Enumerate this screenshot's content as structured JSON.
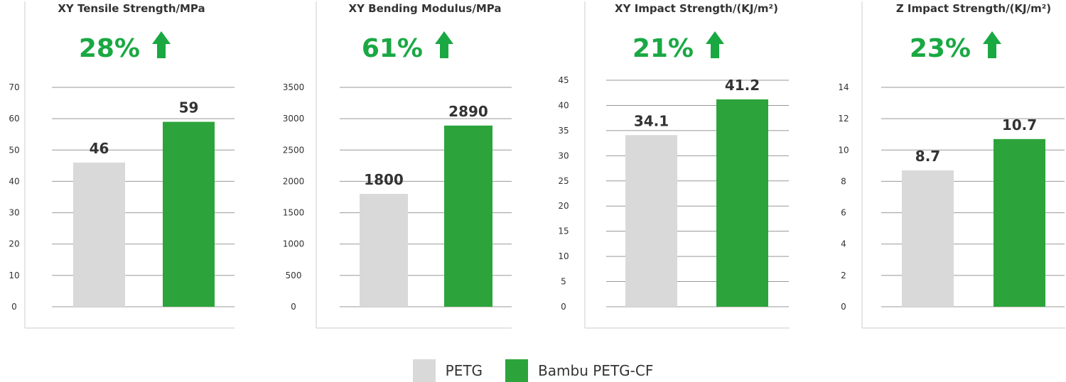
{
  "colors": {
    "petg": "#d9d9d9",
    "petg_cf": "#2ca43b",
    "highlight": "#1aa843",
    "axis_text": "#333333",
    "grid": "#999999"
  },
  "legend": {
    "items": [
      {
        "label": "PETG",
        "color": "#d9d9d9"
      },
      {
        "label": "Bambu PETG-CF",
        "color": "#2ca43b"
      }
    ]
  },
  "chart_data": [
    {
      "type": "bar",
      "title": "XY Tensile Strength/MPa",
      "improvement": "28%",
      "improvement_icon": "arrow-up-icon",
      "categories": [
        "PETG",
        "Bambu PETG-CF"
      ],
      "values": [
        46,
        59
      ],
      "value_labels": [
        "46",
        "59"
      ],
      "ylim": [
        0,
        70
      ],
      "yticks": [
        0,
        10,
        20,
        30,
        40,
        50,
        60,
        70
      ],
      "grid": true
    },
    {
      "type": "bar",
      "title": "XY Bending Modulus/MPa",
      "improvement": "61%",
      "improvement_icon": "arrow-up-icon",
      "categories": [
        "PETG",
        "Bambu PETG-CF"
      ],
      "values": [
        1800,
        2890
      ],
      "value_labels": [
        "1800",
        "2890"
      ],
      "ylim": [
        0,
        3500
      ],
      "yticks": [
        0,
        500,
        1000,
        1500,
        2000,
        2500,
        3000,
        3500
      ],
      "grid": true
    },
    {
      "type": "bar",
      "title": "XY Impact Strength/(KJ/m²)",
      "improvement": "21%",
      "improvement_icon": "arrow-up-icon",
      "categories": [
        "PETG",
        "Bambu PETG-CF"
      ],
      "values": [
        34.1,
        41.2
      ],
      "value_labels": [
        "34.1",
        "41.2"
      ],
      "ylim": [
        0,
        45
      ],
      "yticks": [
        0,
        5,
        10,
        15,
        20,
        25,
        30,
        35,
        40,
        45
      ],
      "grid": true
    },
    {
      "type": "bar",
      "title": "Z Impact Strength/(KJ/m²)",
      "improvement": "23%",
      "improvement_icon": "arrow-up-icon",
      "categories": [
        "PETG",
        "Bambu PETG-CF"
      ],
      "values": [
        8.7,
        10.7
      ],
      "value_labels": [
        "8.7",
        "10.7"
      ],
      "ylim": [
        0,
        14
      ],
      "yticks": [
        0,
        2,
        4,
        6,
        8,
        10,
        12,
        14
      ],
      "grid": true
    }
  ]
}
